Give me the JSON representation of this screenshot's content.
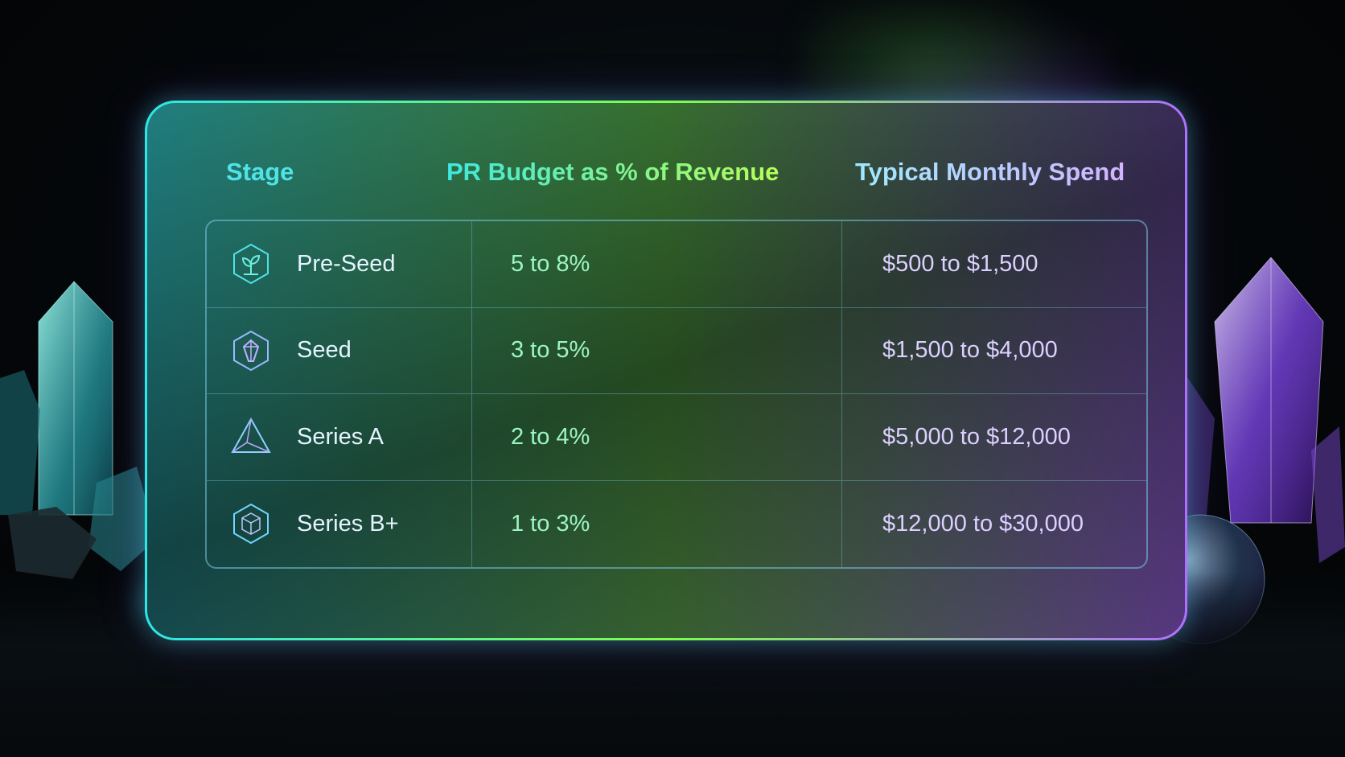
{
  "table": {
    "headers": {
      "stage": "Stage",
      "budget": "PR Budget as % of Revenue",
      "spend": "Typical Monthly Spend"
    },
    "rows": [
      {
        "stage": "Pre-Seed",
        "budget": "5 to 8%",
        "spend": "$500 to $1,500",
        "icon": "sprout-hexagon-icon"
      },
      {
        "stage": "Seed",
        "budget": "3 to 5%",
        "spend": "$1,500 to $4,000",
        "icon": "gem-hexagon-icon"
      },
      {
        "stage": "Series A",
        "budget": "2 to 4%",
        "spend": "$5,000 to $12,000",
        "icon": "pyramid-icon"
      },
      {
        "stage": "Series B+",
        "budget": "1 to 3%",
        "spend": "$12,000 to $30,000",
        "icon": "cube-icon"
      }
    ]
  },
  "colors": {
    "cyan": "#2ee6e6",
    "green": "#7cff4a",
    "purple": "#b070ff"
  }
}
